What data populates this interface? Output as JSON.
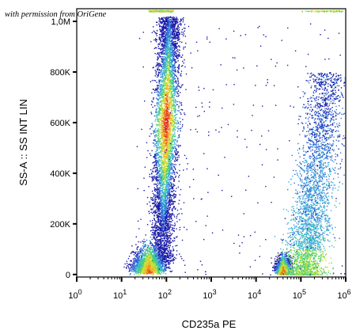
{
  "watermark": "with permission from OriGene",
  "chart_data": {
    "type": "scatter",
    "subtype": "flow-cytometry-density-dot-plot",
    "xlabel": "CD235a PE",
    "ylabel": "SS-A :: SS INT LIN",
    "xscale": "log",
    "yscale": "linear",
    "xlim": [
      1,
      1000000
    ],
    "ylim": [
      -10000,
      1050000
    ],
    "x_ticks": [
      {
        "value": 1,
        "base": "10",
        "exp": "0"
      },
      {
        "value": 10,
        "base": "10",
        "exp": "1"
      },
      {
        "value": 100,
        "base": "10",
        "exp": "2"
      },
      {
        "value": 1000,
        "base": "10",
        "exp": "3"
      },
      {
        "value": 10000,
        "base": "10",
        "exp": "4"
      },
      {
        "value": 100000,
        "base": "10",
        "exp": "5"
      },
      {
        "value": 1000000,
        "base": "10",
        "exp": "6"
      }
    ],
    "y_ticks": [
      {
        "value": 0,
        "label": "0"
      },
      {
        "value": 200000,
        "label": "200K"
      },
      {
        "value": 400000,
        "label": "400K"
      },
      {
        "value": 600000,
        "label": "600K"
      },
      {
        "value": 800000,
        "label": "800K"
      },
      {
        "value": 1000000,
        "label": "1,0M"
      }
    ],
    "colormap": [
      "#1a1aa8",
      "#2f6fd6",
      "#3bb0d8",
      "#4ccf78",
      "#c9e23a",
      "#f0b22a",
      "#e8541e",
      "#d81616"
    ],
    "populations": [
      {
        "x_log_center": 1.95,
        "x_log_spread": 0.13,
        "y_min": 40000,
        "y_max": 1020000,
        "y_peak": 600000,
        "density": "high"
      },
      {
        "x_log_center": 1.6,
        "x_log_spread": 0.18,
        "y_min": 0,
        "y_max": 120000,
        "y_peak": 30000,
        "density": "high"
      },
      {
        "x_log_center": 4.6,
        "x_log_spread": 0.08,
        "y_min": 0,
        "y_max": 90000,
        "y_peak": 15000,
        "density": "high"
      },
      {
        "x_log_center": 5.3,
        "x_log_spread": 0.35,
        "y_min": 0,
        "y_max": 800000,
        "y_peak": 80000,
        "density": "medium"
      }
    ],
    "grid": false,
    "legend": "none"
  }
}
